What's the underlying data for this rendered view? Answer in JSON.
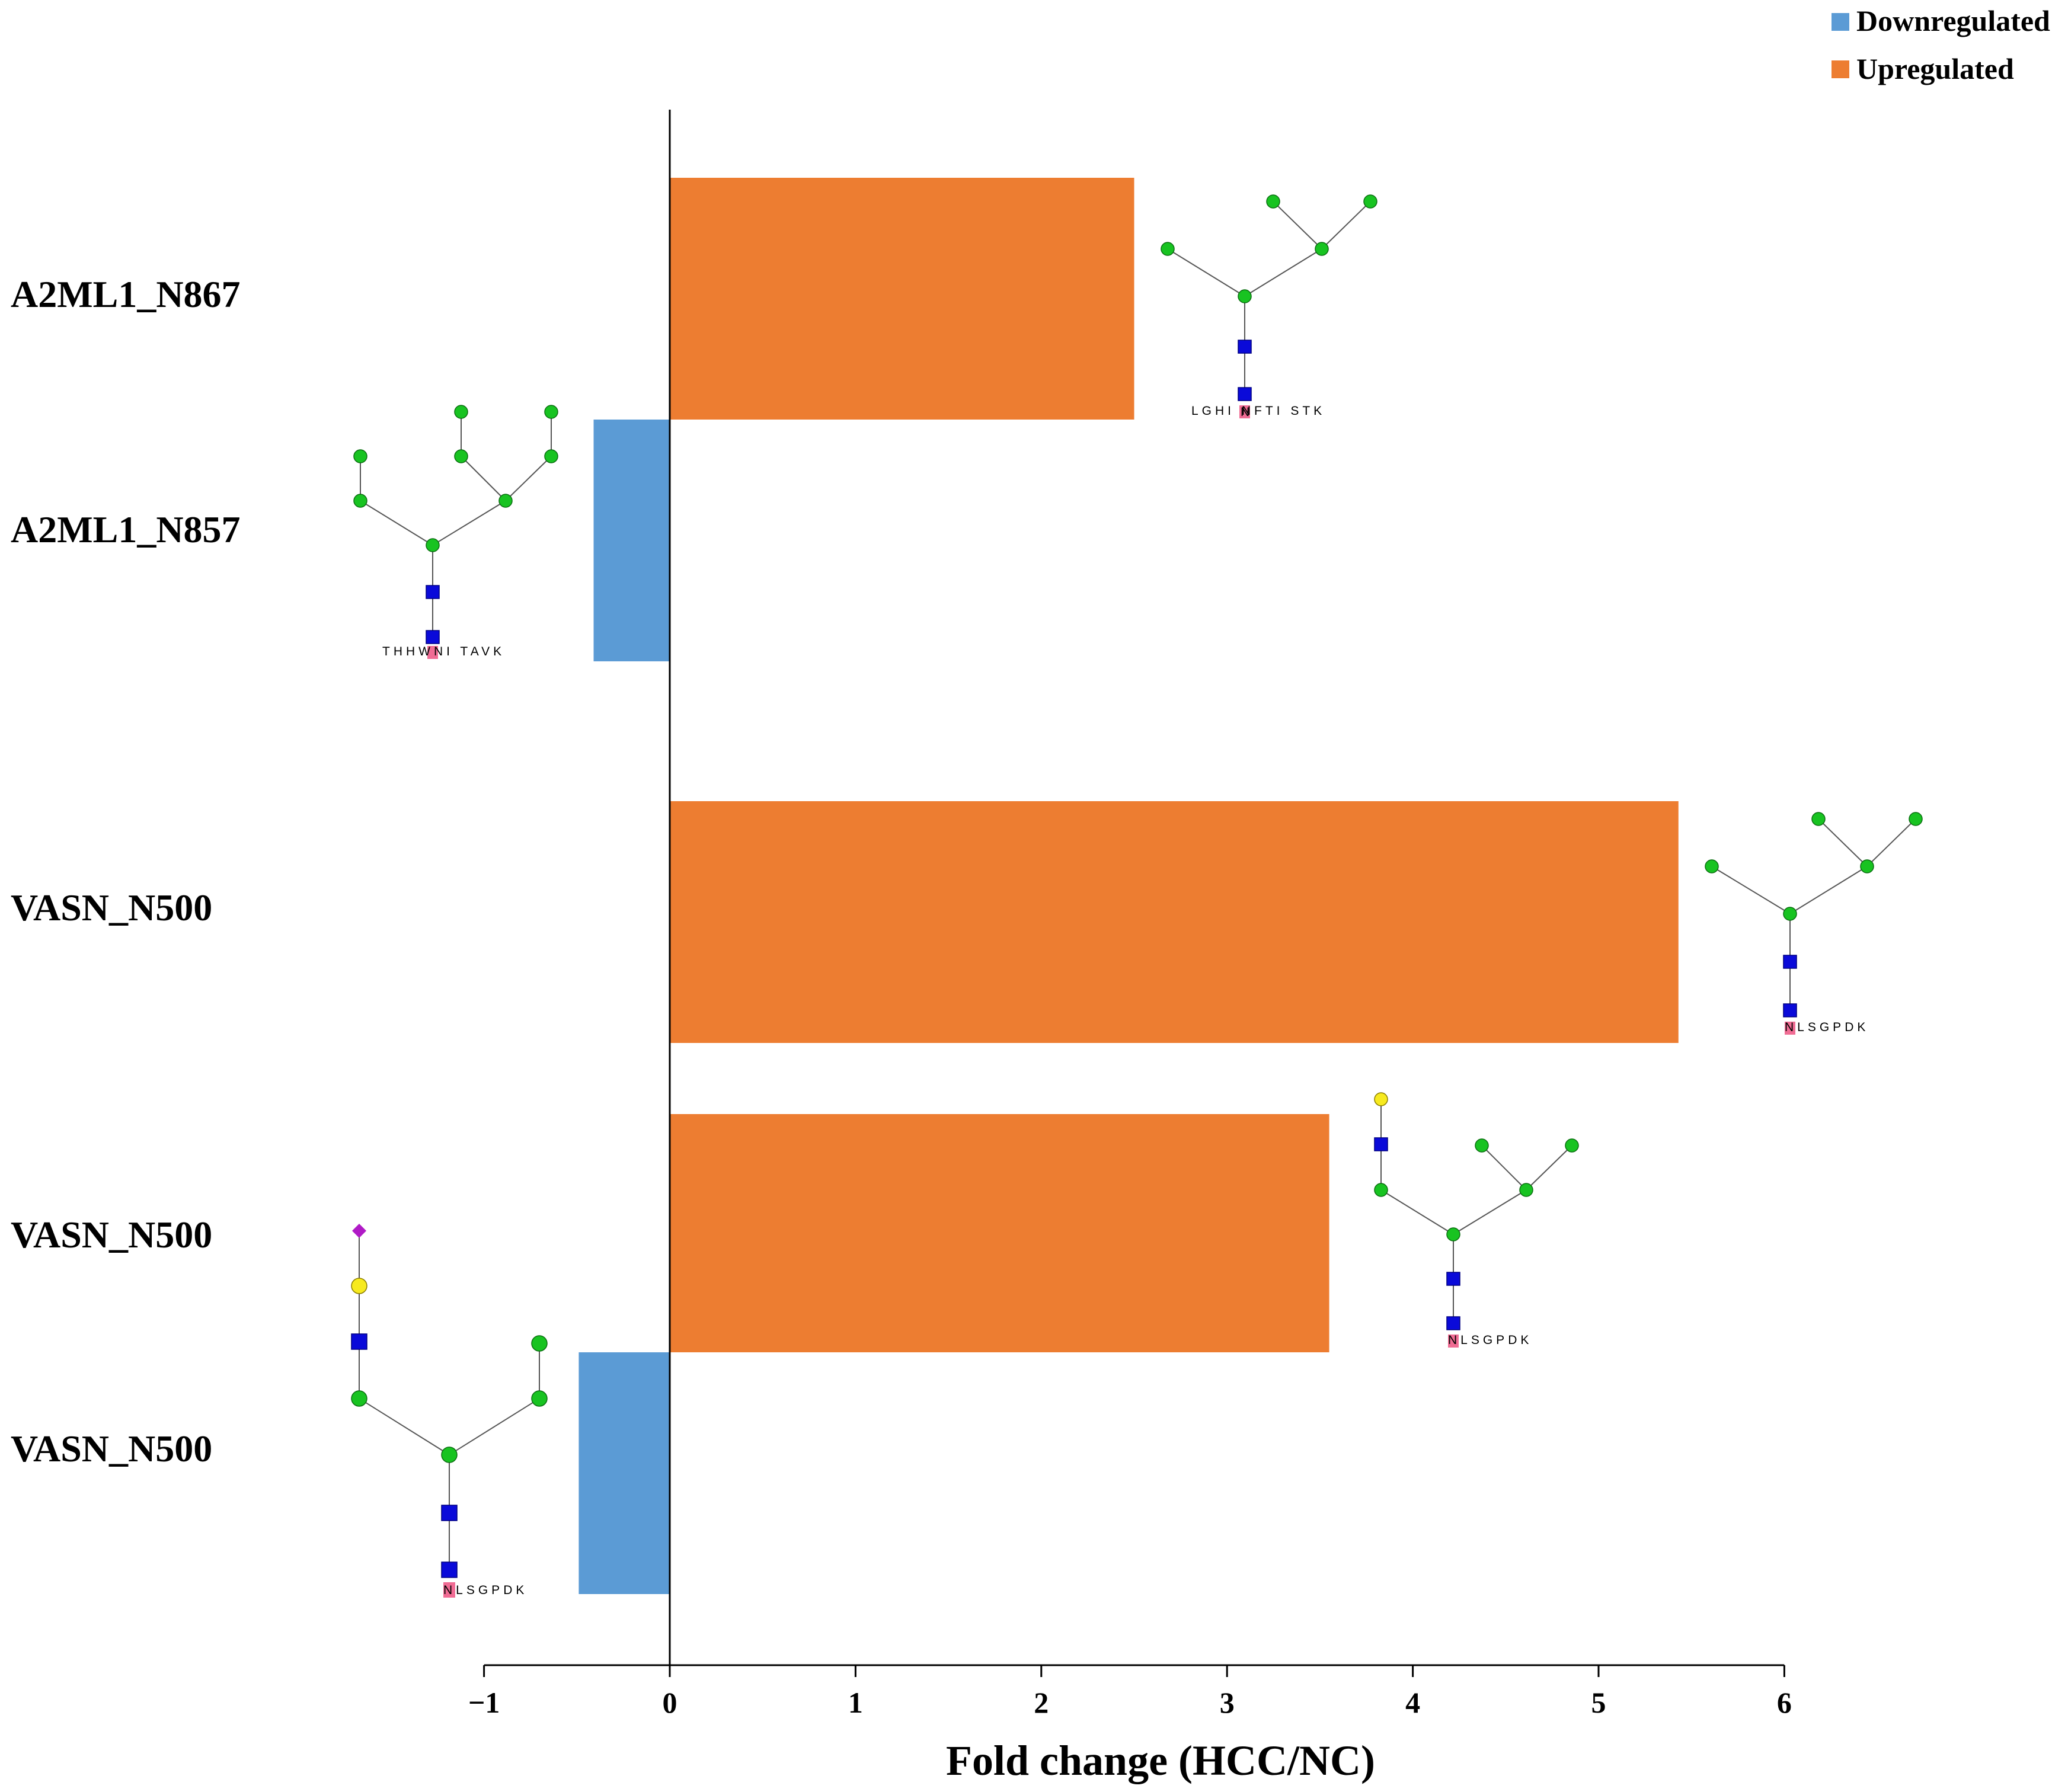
{
  "chart_data": {
    "type": "bar",
    "orientation": "horizontal",
    "title": "",
    "xlabel": "Fold change (HCC/NC)",
    "ylabel": "",
    "xlim": [
      -1,
      6
    ],
    "xticks": [
      "−1",
      "0",
      "1",
      "2",
      "3",
      "4",
      "5",
      "6"
    ],
    "grid": false,
    "legend": {
      "placement": "top-right",
      "entries": [
        {
          "label": "Downregulated",
          "color": "#5b9bd5"
        },
        {
          "label": "Upregulated",
          "color": "#ed7d31"
        }
      ]
    },
    "categories": [
      "A2ML1_N867",
      "A2ML1_N857",
      "VASN_N500",
      "VASN_N500",
      "VASN_N500"
    ],
    "bars": [
      {
        "category": "A2ML1_N867",
        "value": 2.5,
        "status": "Upregulated",
        "peptide": "LGHI NFTI STK"
      },
      {
        "category": "A2ML1_N857",
        "value": -0.41,
        "status": "Downregulated",
        "peptide": "THHWNI TAVK"
      },
      {
        "category": "VASN_N500",
        "value": 5.43,
        "status": "Upregulated",
        "peptide": "NLSGPDK"
      },
      {
        "category": "VASN_N500",
        "value": 3.55,
        "status": "Upregulated",
        "peptide": "NLSGPDK"
      },
      {
        "category": "VASN_N500",
        "value": -0.49,
        "status": "Downregulated",
        "peptide": "NLSGPDK"
      }
    ],
    "glycan_site_letter": "N"
  }
}
